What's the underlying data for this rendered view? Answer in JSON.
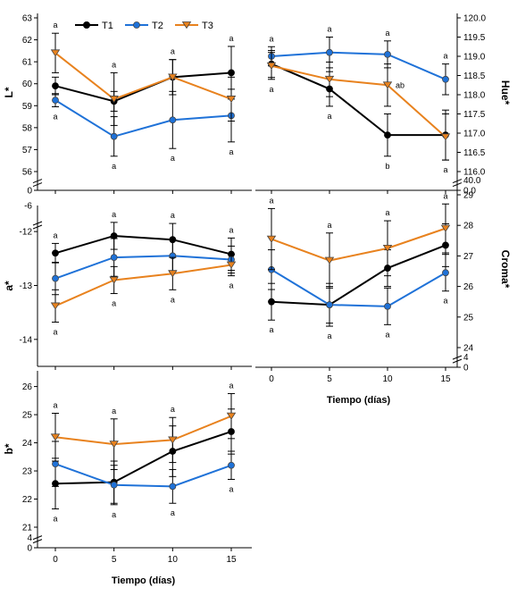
{
  "colors": {
    "T1": "#000000",
    "T2": "#1f72d8",
    "T3": "#e8821e"
  },
  "legend": [
    "T1",
    "T2",
    "T3"
  ],
  "chart_data": [
    {
      "id": "L",
      "type": "line",
      "title": "",
      "ylabel": "L*",
      "xlabel": "",
      "x": [
        0,
        5,
        10,
        15
      ],
      "ylim": [
        56,
        63
      ],
      "yticks": [
        "56",
        "57",
        "58",
        "59",
        "60",
        "61",
        "62",
        "63"
      ],
      "broken_axis_label": "0",
      "series": [
        {
          "name": "T1",
          "values": [
            59.9,
            59.2,
            60.3,
            60.5
          ],
          "err": [
            0.4,
            0.45,
            0.8,
            1.2
          ]
        },
        {
          "name": "T2",
          "values": [
            59.25,
            57.6,
            58.35,
            58.55
          ],
          "err": [
            0.3,
            0.9,
            1.3,
            1.2
          ]
        },
        {
          "name": "T3",
          "values": [
            61.4,
            59.3,
            60.3,
            59.3
          ],
          "err": [
            0.9,
            1.2,
            0.8,
            1.0
          ]
        }
      ],
      "labels_top": [
        "a",
        "a",
        "a",
        "a"
      ],
      "labels_bottom": [
        "a",
        "a",
        "a",
        "a"
      ]
    },
    {
      "id": "Hue",
      "type": "line",
      "title": "",
      "ylabel": "Hue*",
      "xlabel": "",
      "x": [
        0,
        5,
        10,
        15
      ],
      "ylim": [
        116,
        120
      ],
      "yticks": [
        "116.0",
        "116.5",
        "117.0",
        "117.5",
        "118.0",
        "118.5",
        "119.0",
        "119.5",
        "120.0"
      ],
      "broken_axis_label": "40.0",
      "broken_axis_zero": "0.0",
      "series": [
        {
          "name": "T1",
          "values": [
            118.8,
            118.15,
            116.95,
            116.95
          ],
          "err": [
            0.35,
            0.45,
            0.55,
            0.65
          ]
        },
        {
          "name": "T2",
          "values": [
            119.0,
            119.1,
            119.05,
            118.4
          ],
          "err": [
            0.25,
            0.4,
            0.35,
            0.4
          ]
        },
        {
          "name": "T3",
          "values": [
            118.75,
            118.4,
            118.25,
            116.9
          ],
          "err": [
            0.35,
            0.45,
            0.55,
            0.6
          ]
        }
      ],
      "labels_top": [
        "a",
        "a",
        "a",
        "a"
      ],
      "labels_mid": [
        "",
        "",
        "ab",
        ""
      ],
      "labels_bottom": [
        "a",
        "a",
        "b",
        "a"
      ]
    },
    {
      "id": "a",
      "type": "line",
      "title": "",
      "ylabel": "a*",
      "xlabel": "",
      "x": [
        0,
        5,
        10,
        15
      ],
      "ylim": [
        -14.5,
        -11.6
      ],
      "yticks": [
        "-14",
        "-13",
        "-12"
      ],
      "broken_axis_label": "-6",
      "broken_axis_zero": "0",
      "series": [
        {
          "name": "T1",
          "values": [
            -12.4,
            -12.08,
            -12.15,
            -12.42
          ],
          "err": [
            0.18,
            0.25,
            0.3,
            0.3
          ]
        },
        {
          "name": "T2",
          "values": [
            -12.87,
            -12.48,
            -12.45,
            -12.52
          ],
          "err": [
            0.3,
            0.35,
            0.3,
            0.25
          ]
        },
        {
          "name": "T3",
          "values": [
            -13.38,
            -12.9,
            -12.78,
            -12.62
          ],
          "err": [
            0.3,
            0.25,
            0.3,
            0.2
          ]
        }
      ],
      "labels_top": [
        "a",
        "a",
        "a",
        "a"
      ],
      "labels_bottom": [
        "a",
        "a",
        "a",
        "a"
      ]
    },
    {
      "id": "Croma",
      "type": "line",
      "title": "",
      "ylabel": "Croma*",
      "xlabel": "Tiempo (días)",
      "x": [
        0,
        5,
        10,
        15
      ],
      "xticks": [
        "0",
        "5",
        "10",
        "15"
      ],
      "ylim": [
        24,
        29
      ],
      "yticks": [
        "24",
        "25",
        "26",
        "27",
        "28",
        "29"
      ],
      "broken_axis_label": "4",
      "broken_axis_zero": "0",
      "series": [
        {
          "name": "T1",
          "values": [
            25.5,
            25.4,
            26.6,
            27.35
          ],
          "err": [
            0.6,
            0.6,
            0.6,
            0.7
          ]
        },
        {
          "name": "T2",
          "values": [
            26.55,
            25.4,
            25.35,
            26.45
          ],
          "err": [
            0.65,
            0.7,
            0.6,
            0.6
          ]
        },
        {
          "name": "T3",
          "values": [
            27.55,
            26.85,
            27.25,
            27.9
          ],
          "err": [
            1.0,
            0.9,
            0.9,
            0.8
          ]
        }
      ],
      "labels_top": [
        "a",
        "a",
        "a",
        "a"
      ],
      "labels_bottom": [
        "a",
        "a",
        "a",
        "a"
      ]
    },
    {
      "id": "b",
      "type": "line",
      "title": "",
      "ylabel": "b*",
      "xlabel": "Tiempo (días)",
      "x": [
        0,
        5,
        10,
        15
      ],
      "xticks": [
        "0",
        "5",
        "10",
        "15"
      ],
      "ylim": [
        21,
        26.4
      ],
      "yticks": [
        "21",
        "22",
        "23",
        "24",
        "25",
        "26"
      ],
      "broken_axis_label": "4",
      "broken_axis_zero": "0",
      "series": [
        {
          "name": "T1",
          "values": [
            22.55,
            22.6,
            23.7,
            24.4
          ],
          "err": [
            0.9,
            0.75,
            0.9,
            0.8
          ]
        },
        {
          "name": "T2",
          "values": [
            23.25,
            22.5,
            22.45,
            23.2
          ],
          "err": [
            0.8,
            0.7,
            0.6,
            0.5
          ]
        },
        {
          "name": "T3",
          "values": [
            24.2,
            23.95,
            24.1,
            24.95
          ],
          "err": [
            0.85,
            0.9,
            0.8,
            0.8
          ]
        }
      ],
      "labels_top": [
        "a",
        "a",
        "a",
        "a"
      ],
      "labels_bottom": [
        "a",
        "a",
        "a",
        "a"
      ]
    }
  ]
}
